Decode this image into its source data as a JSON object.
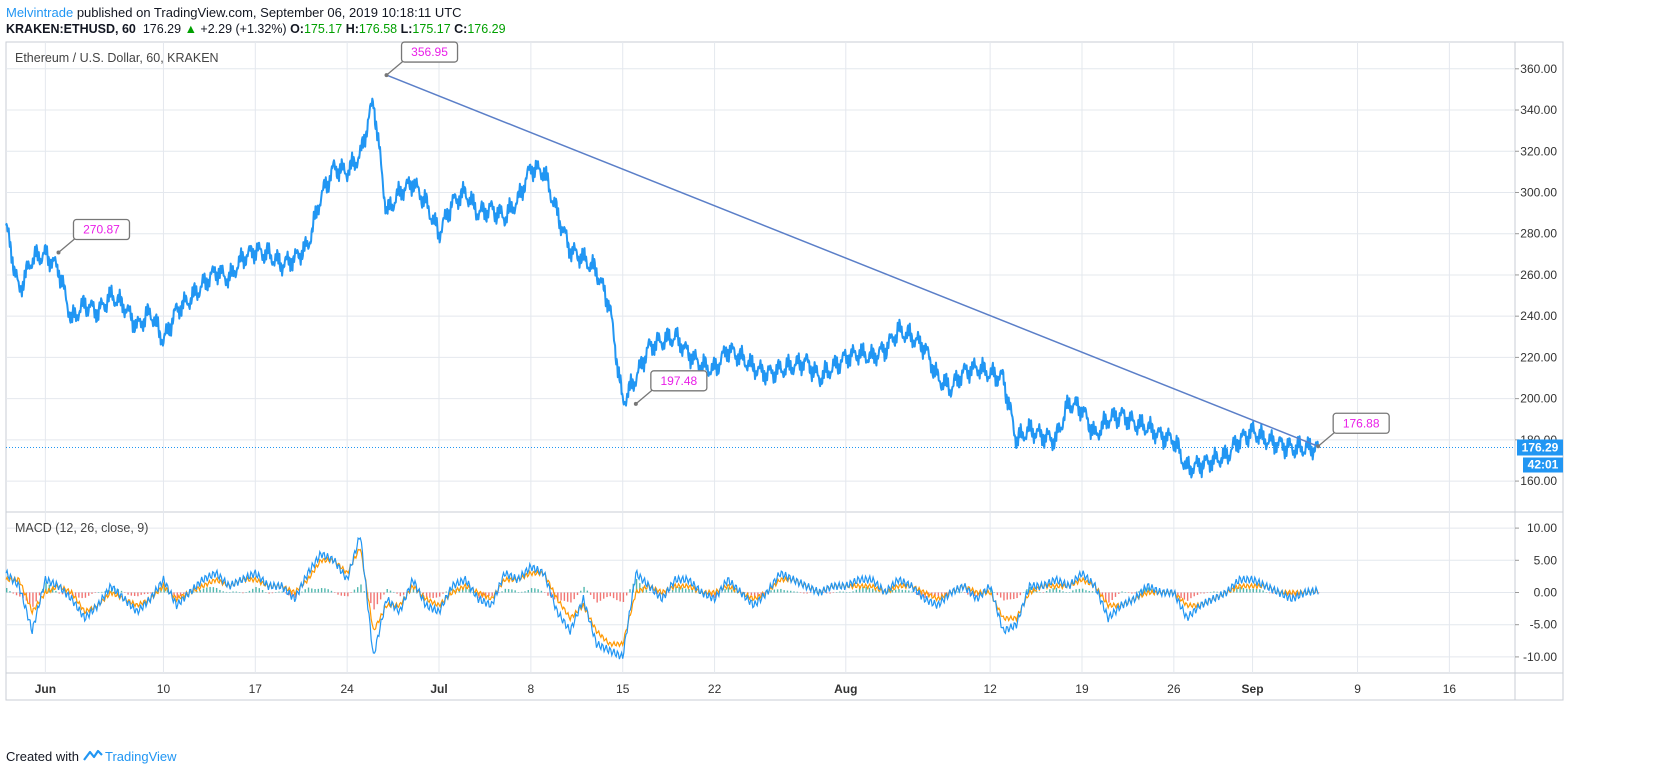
{
  "header": {
    "author": "Melvintrade",
    "published_text": "published on TradingView.com, September 06, 2019 10:18:11 UTC",
    "symbol": "KRAKEN:ETHUSD, 60",
    "last": "176.29",
    "change": "+2.29 (+1.32%)",
    "open_label": "O:",
    "open": "175.17",
    "high_label": "H:",
    "high": "176.58",
    "low_label": "L:",
    "low": "175.17",
    "close_label": "C:",
    "close": "176.29"
  },
  "footer": {
    "created_with": "Created with",
    "brand": "TradingView"
  },
  "colors": {
    "price": "#2196f3",
    "trend": "#5b7fc8",
    "grid": "#e4e8ee",
    "macd": "#2196f3",
    "signal": "#ff9800",
    "hist_pos": "#26a69a",
    "hist_neg": "#ef5350",
    "callout_text": "#e91ee8",
    "last_price_bg": "#2196f3"
  },
  "chart_data": [
    {
      "type": "line",
      "title": "Ethereum / U.S. Dollar, 60, KRAKEN",
      "ylim": [
        145,
        373
      ],
      "yticks": [
        160,
        180,
        200,
        220,
        240,
        260,
        280,
        300,
        320,
        340,
        360
      ],
      "ytick_labels": [
        "160.00",
        "180.00",
        "200.00",
        "220.00",
        "240.00",
        "260.00",
        "280.00",
        "300.00",
        "320.00",
        "340.00",
        "360.00"
      ],
      "xlim": [
        "2019-05-29",
        "2019-09-21"
      ],
      "x_ticks": [
        {
          "date": "2019-06-01",
          "label": "Jun",
          "bold": true
        },
        {
          "date": "2019-06-10",
          "label": "10"
        },
        {
          "date": "2019-06-17",
          "label": "17"
        },
        {
          "date": "2019-06-24",
          "label": "24"
        },
        {
          "date": "2019-07-01",
          "label": "Jul",
          "bold": true
        },
        {
          "date": "2019-07-08",
          "label": "8"
        },
        {
          "date": "2019-07-15",
          "label": "15"
        },
        {
          "date": "2019-07-22",
          "label": "22"
        },
        {
          "date": "2019-08-01",
          "label": "Aug",
          "bold": true
        },
        {
          "date": "2019-08-12",
          "label": "12"
        },
        {
          "date": "2019-08-19",
          "label": "19"
        },
        {
          "date": "2019-08-26",
          "label": "26"
        },
        {
          "date": "2019-09-01",
          "label": "Sep",
          "bold": true
        },
        {
          "date": "2019-09-09",
          "label": "9"
        },
        {
          "date": "2019-09-16",
          "label": "16"
        }
      ],
      "series": [
        {
          "x": [
            "2019-05-29",
            "2019-05-30",
            "2019-05-31",
            "2019-06-01",
            "2019-06-02",
            "2019-06-03",
            "2019-06-04",
            "2019-06-05",
            "2019-06-06",
            "2019-06-07",
            "2019-06-08",
            "2019-06-09",
            "2019-06-10",
            "2019-06-11",
            "2019-06-12",
            "2019-06-13",
            "2019-06-14",
            "2019-06-15",
            "2019-06-16",
            "2019-06-17",
            "2019-06-18",
            "2019-06-19",
            "2019-06-20",
            "2019-06-21",
            "2019-06-22",
            "2019-06-23",
            "2019-06-24",
            "2019-06-25",
            "2019-06-26",
            "2019-06-27",
            "2019-06-28",
            "2019-06-29",
            "2019-06-30",
            "2019-07-01",
            "2019-07-02",
            "2019-07-03",
            "2019-07-04",
            "2019-07-05",
            "2019-07-06",
            "2019-07-07",
            "2019-07-08",
            "2019-07-09",
            "2019-07-10",
            "2019-07-11",
            "2019-07-12",
            "2019-07-13",
            "2019-07-14",
            "2019-07-15",
            "2019-07-16",
            "2019-07-17",
            "2019-07-18",
            "2019-07-19",
            "2019-07-20",
            "2019-07-21",
            "2019-07-22",
            "2019-07-23",
            "2019-07-24",
            "2019-07-25",
            "2019-07-26",
            "2019-07-27",
            "2019-07-28",
            "2019-07-29",
            "2019-07-30",
            "2019-07-31",
            "2019-08-01",
            "2019-08-02",
            "2019-08-03",
            "2019-08-04",
            "2019-08-05",
            "2019-08-06",
            "2019-08-07",
            "2019-08-08",
            "2019-08-09",
            "2019-08-10",
            "2019-08-11",
            "2019-08-12",
            "2019-08-13",
            "2019-08-14",
            "2019-08-15",
            "2019-08-16",
            "2019-08-17",
            "2019-08-18",
            "2019-08-19",
            "2019-08-20",
            "2019-08-21",
            "2019-08-22",
            "2019-08-23",
            "2019-08-24",
            "2019-08-25",
            "2019-08-26",
            "2019-08-27",
            "2019-08-28",
            "2019-08-29",
            "2019-08-30",
            "2019-08-31",
            "2019-09-01",
            "2019-09-02",
            "2019-09-03",
            "2019-09-04",
            "2019-09-05",
            "2019-09-06"
          ],
          "y": [
            284,
            252,
            268,
            270,
            263,
            238,
            246,
            242,
            250,
            245,
            235,
            242,
            228,
            243,
            248,
            255,
            262,
            258,
            268,
            272,
            270,
            265,
            268,
            274,
            298,
            312,
            310,
            318,
            345,
            290,
            300,
            305,
            295,
            280,
            295,
            300,
            290,
            292,
            288,
            296,
            312,
            310,
            290,
            272,
            268,
            262,
            245,
            198,
            210,
            225,
            228,
            230,
            222,
            216,
            214,
            224,
            220,
            215,
            212,
            214,
            216,
            218,
            210,
            215,
            220,
            222,
            220,
            224,
            233,
            230,
            225,
            210,
            205,
            213,
            215,
            212,
            210,
            180,
            185,
            182,
            180,
            198,
            195,
            182,
            190,
            192,
            188,
            186,
            182,
            180,
            166,
            168,
            170,
            172,
            180,
            184,
            180,
            178,
            176,
            176,
            176.29
          ]
        }
      ],
      "annotations": [
        {
          "label": "270.87",
          "date": "2019-06-02",
          "value": 270.87
        },
        {
          "label": "356.95",
          "date": "2019-06-27",
          "value": 356.95
        },
        {
          "label": "197.48",
          "date": "2019-07-16",
          "value": 197.48
        },
        {
          "label": "176.88",
          "date": "2019-09-06",
          "value": 176.88
        }
      ],
      "trendline": {
        "from": {
          "date": "2019-06-27",
          "value": 356.95
        },
        "to": {
          "date": "2019-09-06",
          "value": 176.88
        }
      },
      "last_price": {
        "value": 176.29,
        "label": "176.29",
        "countdown": "42:01"
      }
    },
    {
      "type": "line",
      "title": "MACD (12, 26, close, 9)",
      "ylim": [
        -12.5,
        12.5
      ],
      "yticks": [
        -10,
        -5,
        0,
        5,
        10
      ],
      "ytick_labels": [
        "-10.00",
        "-5.00",
        "0.00",
        "5.00",
        "10.00"
      ],
      "xlim": [
        "2019-05-29",
        "2019-09-21"
      ],
      "series": [
        {
          "name": "MACD",
          "values": [
            3,
            1,
            -6,
            2,
            1,
            -1,
            -4,
            -2,
            1,
            -1,
            -3,
            -1,
            2,
            -2,
            0,
            2,
            3,
            1,
            2,
            3,
            1,
            1,
            -1,
            3,
            6,
            5,
            2,
            9,
            -10,
            -1,
            -3,
            2,
            -2,
            -3,
            1,
            2,
            -1,
            -2,
            3,
            2,
            4,
            3,
            -3,
            -6,
            -1,
            -8,
            -9,
            -10,
            3,
            1,
            -1,
            2,
            2,
            0,
            -1,
            2,
            0,
            -2,
            0,
            3,
            2,
            1,
            0,
            1,
            1,
            2,
            2,
            0,
            2,
            1,
            -1,
            -2,
            0,
            1,
            -1,
            1,
            -6,
            -5,
            1,
            1,
            2,
            1,
            3,
            1,
            -4,
            -2,
            -1,
            1,
            0,
            0,
            -4,
            -2,
            -1,
            0,
            2,
            2,
            1,
            0,
            -1,
            0,
            0.3
          ]
        },
        {
          "name": "Signal",
          "values": [
            2,
            2,
            -3,
            0,
            1,
            0,
            -3,
            -2,
            0,
            -1,
            -2,
            -1,
            1,
            -1,
            0,
            1,
            2,
            1,
            2,
            2,
            1,
            1,
            0,
            2,
            5,
            5,
            3,
            7,
            -6,
            -2,
            -2,
            1,
            -1,
            -2,
            0,
            1,
            0,
            -1,
            2,
            2,
            3,
            3,
            -1,
            -4,
            -2,
            -6,
            -8,
            -8,
            0,
            1,
            0,
            1,
            1,
            0,
            0,
            1,
            0,
            -1,
            0,
            2,
            2,
            1,
            0,
            1,
            1,
            1,
            1,
            0,
            1,
            1,
            0,
            -1,
            0,
            1,
            0,
            0,
            -4,
            -4,
            0,
            1,
            1,
            1,
            2,
            1,
            -2,
            -2,
            -1,
            0,
            0,
            0,
            -2,
            -2,
            -1,
            0,
            1,
            1,
            1,
            0,
            0,
            0,
            0.2
          ]
        }
      ]
    }
  ]
}
